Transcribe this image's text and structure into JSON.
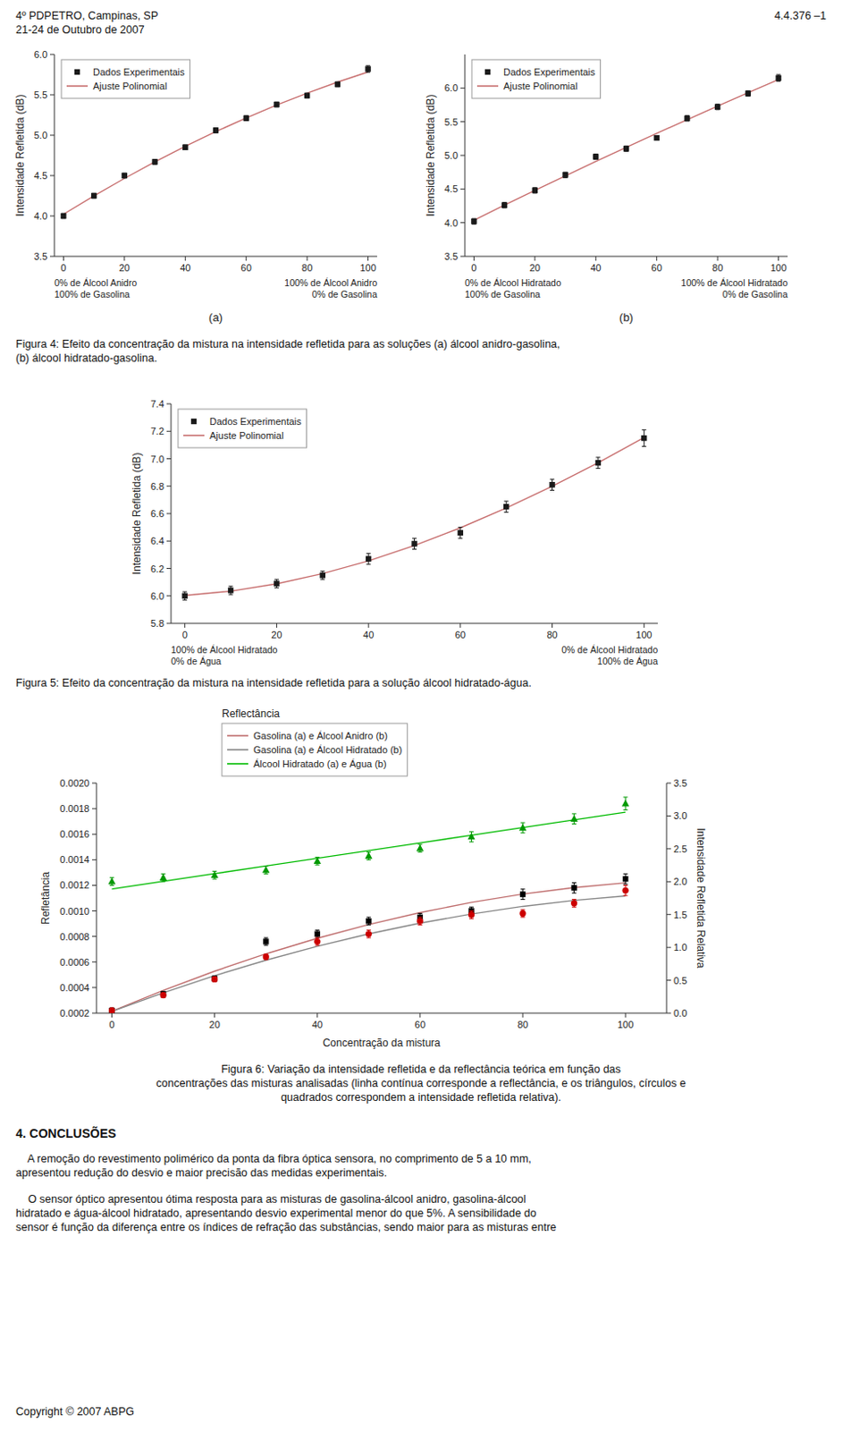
{
  "annotations": [
    "4º PDPETRO, Campinas, SP\n21-24 de Outubro de 2007",
    "4.4.376 –1",
    "Figura 4: Efeito da concentração da mistura na intensidade refletida para as soluções (a) álcool anidro-gasolina,\n(b) álcool hidratado-gasolina.",
    "Figura 5: Efeito da concentração da mistura na intensidade refletida para a solução álcool hidratado-água.",
    "Figura 6: Variação da intensidade refletida e da reflectância teórica em função das\nconcentrações das misturas analisadas (linha contínua corresponde a reflectância, e os triângulos, círculos e\nquadrados correspondem a intensidade refletida relativa).",
    "4. CONCLUSÕES",
    "    A remoção do revestimento polimérico da ponta da fibra óptica sensora, no comprimento de 5 a 10 mm,\napresentou redução do desvio e maior precisão das medidas experimentais.",
    "    O sensor óptico apresentou ótima resposta para as misturas de gasolina-álcool anidro, gasolina-álcool\nhidratado e água-álcool hidratado, apresentando desvio experimental menor do que 5%. A sensibilidade do\nsensor é função da diferença entre os índices de refração das substâncias, sendo maior para as misturas entre",
    "Copyright © 2007 ABPG"
  ],
  "chart_data": [
    {
      "type": "scatter",
      "ylabel": "Intensidade Refletida (dB)",
      "annotations": [
        "0% de Álcool Anidro\n100% de Gasolina",
        "100% de Álcool Anidro\n0% de Gasolina",
        "(a)"
      ],
      "x": [
        0,
        10,
        20,
        30,
        40,
        50,
        60,
        70,
        80,
        90,
        100
      ],
      "xlim": [
        -3,
        103
      ],
      "xticks": [
        0,
        20,
        40,
        60,
        80,
        100
      ],
      "ylim": [
        3.5,
        6.0
      ],
      "yticks": [
        3.5,
        {
          "value": 4.0,
          "label": "4.0"
        },
        4.5,
        {
          "value": 5.0,
          "label": "5.0"
        },
        5.5,
        {
          "value": 6.0,
          "label": "6.0"
        }
      ],
      "legend": "upper left",
      "series": [
        {
          "name": "Dados Experimentais",
          "type": "scatter",
          "marker": "square",
          "color": "#1a1a1a",
          "values": [
            4.0,
            4.25,
            4.5,
            4.67,
            4.85,
            5.06,
            5.21,
            5.38,
            5.49,
            5.63,
            5.82
          ],
          "yerr": [
            0.03,
            0.03,
            0.03,
            0.03,
            0.03,
            0.03,
            0.03,
            0.03,
            0.03,
            0.03,
            0.04
          ]
        },
        {
          "name": "Ajuste Polinomial",
          "type": "line",
          "color": "#c87070",
          "values": [
            4.022,
            4.249,
            4.4647,
            4.669,
            4.8621,
            5.0438,
            5.2142,
            5.3734,
            5.5212,
            5.6577,
            5.7829
          ]
        }
      ]
    },
    {
      "type": "scatter",
      "ylabel": "Intensidade Refletida (dB)",
      "annotations": [
        "0% de Álcool Hidratado\n100% de Gasolina",
        "100% de Álcool Hidratado\n0% de Gasolina",
        "(b)"
      ],
      "x": [
        0,
        10,
        20,
        30,
        40,
        50,
        60,
        70,
        80,
        90,
        100
      ],
      "xlim": [
        -3,
        103
      ],
      "xticks": [
        0,
        20,
        40,
        60,
        80,
        100
      ],
      "ylim": [
        3.5,
        6.5
      ],
      "yticks": [
        3.5,
        {
          "value": 4.0,
          "label": "4.0"
        },
        4.5,
        {
          "value": 5.0,
          "label": "5.0"
        },
        5.5,
        {
          "value": 6.0,
          "label": "6.0"
        }
      ],
      "legend": "upper left",
      "series": [
        {
          "name": "Dados Experimentais",
          "type": "scatter",
          "marker": "square",
          "color": "#1a1a1a",
          "values": [
            4.02,
            4.26,
            4.48,
            4.71,
            4.98,
            5.1,
            5.26,
            5.55,
            5.72,
            5.92,
            6.15
          ],
          "yerr": [
            0.04,
            0.04,
            0.04,
            0.04,
            0.04,
            0.04,
            0.03,
            0.04,
            0.04,
            0.04,
            0.05
          ]
        },
        {
          "name": "Ajuste Polinomial",
          "type": "line",
          "color": "#c87070",
          "values": [
            4.0379,
            4.2603,
            4.4796,
            4.6959,
            4.9093,
            5.1196,
            5.3269,
            5.5312,
            5.7325,
            5.9308,
            6.1261
          ]
        }
      ]
    },
    {
      "type": "scatter",
      "ylabel": "Intensidade Refletida (dB)",
      "annotations": [
        "100% de Álcool Hidratado\n0% de Água",
        "0% de Álcool Hidratado\n100% de Água"
      ],
      "x": [
        0,
        10,
        20,
        30,
        40,
        50,
        60,
        70,
        80,
        90,
        100
      ],
      "xlim": [
        -3,
        103
      ],
      "xticks": [
        0,
        20,
        40,
        60,
        80,
        100
      ],
      "ylim": [
        5.8,
        7.4
      ],
      "yticks": [
        5.8,
        {
          "value": 6.0,
          "label": "6.0"
        },
        6.2,
        6.4,
        6.6,
        6.8,
        {
          "value": 7.0,
          "label": "7.0"
        },
        7.2,
        7.4
      ],
      "legend": "upper left",
      "series": [
        {
          "name": "Dados Experimentais",
          "type": "scatter",
          "marker": "square",
          "color": "#1a1a1a",
          "values": [
            6.0,
            6.04,
            6.09,
            6.15,
            6.27,
            6.38,
            6.46,
            6.65,
            6.81,
            6.97,
            7.15
          ],
          "yerr": [
            0.03,
            0.03,
            0.03,
            0.03,
            0.04,
            0.04,
            0.04,
            0.04,
            0.04,
            0.04,
            0.06
          ]
        },
        {
          "name": "Ajuste Polinomial",
          "type": "line",
          "color": "#c87070",
          "values": [
            6.0028,
            6.0344,
            6.0879,
            6.1621,
            6.2557,
            6.3674,
            6.496,
            6.6403,
            6.7988,
            6.9705,
            7.154
          ]
        }
      ]
    },
    {
      "type": "scatter",
      "title": "Reflectância",
      "xlabel": "Concentração da mistura",
      "ylabel": "Refletância",
      "y2label": "Intensidade Refletida Relativa",
      "x": [
        0,
        10,
        20,
        30,
        40,
        50,
        60,
        70,
        80,
        90,
        100
      ],
      "xlim": [
        -3,
        108
      ],
      "xticks": [
        0,
        20,
        40,
        60,
        80,
        100
      ],
      "ylim": [
        0.0002,
        0.002
      ],
      "yticks": [
        0.0002,
        0.0004,
        0.0006,
        0.0008,
        {
          "value": 0.001,
          "label": "0.0010"
        },
        0.0012,
        0.0014,
        0.0016,
        0.0018,
        {
          "value": 0.002,
          "label": "0.0020"
        }
      ],
      "y2lim": [
        0.0,
        3.5
      ],
      "y2ticks": [
        {
          "value": 0.0,
          "label": "0.0"
        },
        0.5,
        {
          "value": 1.0,
          "label": "1.0"
        },
        1.5,
        {
          "value": 2.0,
          "label": "2.0"
        },
        2.5,
        {
          "value": 3.0,
          "label": "3.0"
        },
        3.5
      ],
      "legend": "top",
      "series": [
        {
          "name": "Gasolina (a) e Álcool Anidro (b)",
          "type": "line",
          "color": "#c07070",
          "values": [
            0.00021406,
            0.00037817,
            0.00052815,
            0.00066401,
            0.00078575,
            0.00089336,
            0.00098684,
            0.0010662,
            0.0011314,
            0.0011825,
            0.0012195
          ]
        },
        {
          "name": "Gasolina (a) e Álcool Hidratado (b)",
          "type": "line",
          "color": "#888888",
          "values": [
            0.00021259,
            0.00035885,
            0.00049271,
            0.00061415,
            0.00072317,
            0.00081979,
            0.00090399,
            0.00097578,
            0.0010352,
            0.0010821,
            0.0011167
          ]
        },
        {
          "name": "Álcool Hidratado (a) e Água (b)",
          "type": "line",
          "color": "#00bb00",
          "values": [
            0.00117091,
            0.00123109,
            0.00129127,
            0.00135145,
            0.00141164,
            0.00147182,
            0.001532,
            0.00159218,
            0.00165236,
            0.00171255,
            0.00177273
          ]
        },
        {
          "type": "scatter",
          "marker": "square",
          "color": "#000000",
          "values": [
            0.00022,
            0.00035,
            0.00047,
            0.00076,
            0.00082,
            0.00092,
            0.00095,
            0.001,
            0.00113,
            0.00118,
            0.00125
          ],
          "yerr": [
            2e-05,
            2e-05,
            2e-05,
            3e-05,
            3e-05,
            3e-05,
            3e-05,
            3e-05,
            4e-05,
            4e-05,
            4e-05
          ]
        },
        {
          "type": "scatter",
          "marker": "circle",
          "color": "#cc0000",
          "values": [
            0.00022,
            0.00034,
            0.000465,
            0.00064,
            0.00076,
            0.00082,
            0.00092,
            0.00097,
            0.00098,
            0.00106,
            0.00116
          ],
          "yerr": [
            2e-05,
            2e-05,
            2e-05,
            2e-05,
            3e-05,
            3e-05,
            3e-05,
            3e-05,
            3e-05,
            3e-05,
            4e-05
          ]
        },
        {
          "type": "scatter",
          "marker": "triangle",
          "color": "#009900",
          "values": [
            0.00123,
            0.00126,
            0.00128,
            0.00132,
            0.00139,
            0.00143,
            0.00149,
            0.00158,
            0.00165,
            0.00172,
            0.00184
          ],
          "yerr": [
            3e-05,
            3e-05,
            3e-05,
            3e-05,
            3e-05,
            3e-05,
            3e-05,
            4e-05,
            4e-05,
            4e-05,
            5e-05
          ]
        }
      ]
    }
  ]
}
